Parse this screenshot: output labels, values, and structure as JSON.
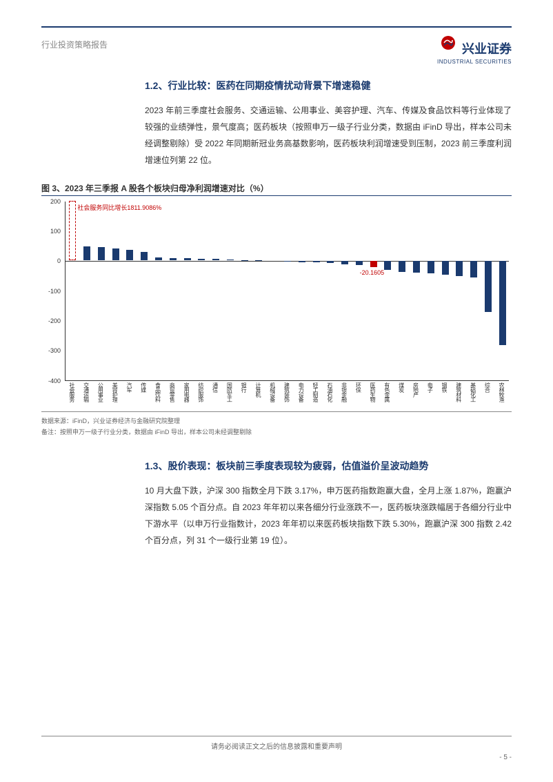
{
  "header": {
    "report_type": "行业投资策略报告",
    "logo_cn": "兴业证券",
    "logo_en": "INDUSTRIAL SECURITIES"
  },
  "section_1_2": {
    "title": "1.2、行业比较：医药在同期疫情扰动背景下增速稳健",
    "body": "2023 年前三季度社会服务、交通运输、公用事业、美容护理、汽车、传媒及食品饮料等行业体现了较强的业绩弹性，景气度高；医药板块（按照申万一级子行业分类，数据由 iFinD 导出，样本公司未经调整剔除）受 2022 年同期新冠业务高基数影响，医药板块利润增速受到压制，2023 前三季度利润增速位列第 22 位。"
  },
  "figure3": {
    "caption": "图 3、2023 年三季报 A 股各个板块归母净利润增速对比（%）",
    "annotation_top": "社会服务同比增长1811.9086%",
    "annotation_mid": "-20.1605",
    "y_ticks": [
      200,
      100,
      0,
      -100,
      -200,
      -300,
      -400
    ],
    "y_min": -400,
    "y_max": 200,
    "categories": [
      "社会服务",
      "交通运输",
      "公用事业",
      "美容护理",
      "汽车",
      "传媒",
      "食品饮料",
      "商贸零售",
      "家用电器",
      "纺织服饰",
      "通信",
      "国防军工",
      "银行",
      "计算机",
      "机械设备",
      "建筑装饰",
      "电力设备",
      "轻工制造",
      "石油石化",
      "非银金融",
      "环保",
      "医药生物",
      "有色金属",
      "煤炭",
      "房地产",
      "电子",
      "钢铁",
      "建筑材料",
      "基础化工",
      "综合",
      "农林牧渔"
    ],
    "values": [
      200,
      48,
      45,
      40,
      35,
      28,
      10,
      8,
      7,
      6,
      5,
      4,
      2,
      1,
      0,
      -2,
      -3,
      -4,
      -6,
      -10,
      -12,
      -20.16,
      -28,
      -35,
      -38,
      -40,
      -45,
      -50,
      -55,
      -170,
      -280
    ],
    "colors": {
      "normal": "#1a3a6e",
      "highlight_red": "#c00000",
      "axis": "#333333"
    },
    "highlight_dashed_index": 0,
    "highlight_solid_index": 21,
    "source": "数据来源：iFinD，兴业证券经济与金融研究院整理",
    "note": "备注：按照申万一级子行业分类，数据由 iFinD 导出，样本公司未经调整剔除"
  },
  "section_1_3": {
    "title": "1.3、股价表现：板块前三季度表现较为疲弱，估值溢价呈波动趋势",
    "body": "10 月大盘下跌，沪深 300 指数全月下跌 3.17%，申万医药指数跑赢大盘，全月上涨 1.87%，跑赢沪深指数 5.05 个百分点。自 2023 年年初以来各细分行业涨跌不一，医药板块涨跌幅居于各细分行业中下游水平（以申万行业指数计，2023 年年初以来医药板块指数下跌 5.30%，跑赢沪深 300 指数 2.42 个百分点，列 31 个一级行业第 19 位）。"
  },
  "footer": {
    "disclaimer": "请务必阅读正文之后的信息披露和重要声明",
    "page": "- 5 -"
  }
}
